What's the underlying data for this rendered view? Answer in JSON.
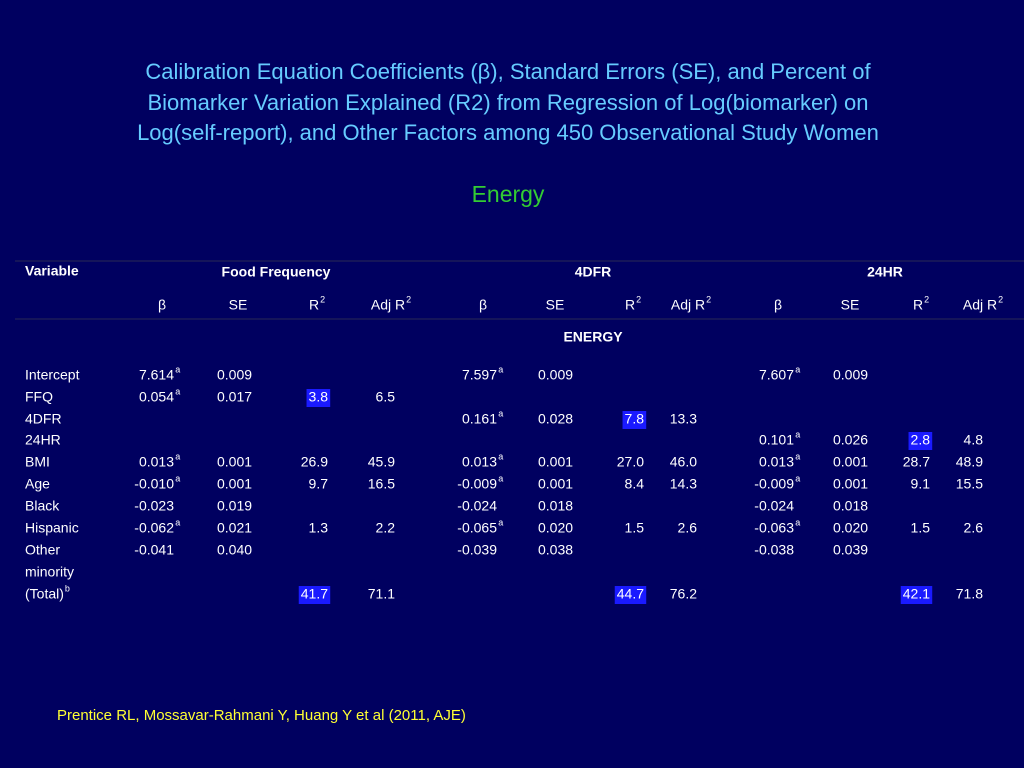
{
  "slide": {
    "title_lines": [
      "Calibration Equation Coefficients (β), Standard Errors (SE), and Percent of",
      "Biomarker Variation Explained (R2) from Regression of Log(biomarker) on",
      "Log(self-report), and Other Factors among 450 Observational Study Women"
    ],
    "subtitle": "Energy",
    "citation": "Prentice RL, Mossavar-Rahmani Y, Huang Y et al (2011, AJE)"
  },
  "table": {
    "variable_header": "Variable",
    "groups": [
      "Food Frequency",
      "4DFR",
      "24HR"
    ],
    "columns": [
      "β",
      "SE",
      {
        "text": "R",
        "sup": "2"
      },
      {
        "text": "Adj R",
        "sup": "2"
      },
      "β",
      "SE",
      {
        "text": "R",
        "sup": "2"
      },
      {
        "text": "Adj R",
        "sup": "2"
      },
      "β",
      "SE",
      {
        "text": "R",
        "sup": "2"
      },
      {
        "text": "Adj R",
        "sup": "2"
      }
    ],
    "section": "ENERGY",
    "rows": [
      {
        "label": "Intercept",
        "cells": [
          {
            "text": "7.614",
            "sup": "a"
          },
          "0.009",
          null,
          null,
          {
            "text": "7.597",
            "sup": "a"
          },
          "0.009",
          null,
          null,
          {
            "text": "7.607",
            "sup": "a"
          },
          "0.009",
          null,
          null
        ]
      },
      {
        "label": "FFQ",
        "cells": [
          {
            "text": "0.054",
            "sup": "a"
          },
          "0.017",
          {
            "text": "3.8",
            "highlight": true
          },
          "6.5",
          null,
          null,
          null,
          null,
          null,
          null,
          null,
          null
        ]
      },
      {
        "label": "4DFR",
        "cells": [
          null,
          null,
          null,
          null,
          {
            "text": "0.161",
            "sup": "a"
          },
          "0.028",
          {
            "text": "7.8",
            "highlight": true
          },
          "13.3",
          null,
          null,
          null,
          null
        ]
      },
      {
        "label": "24HR",
        "cells": [
          null,
          null,
          null,
          null,
          null,
          null,
          null,
          null,
          {
            "text": "0.101",
            "sup": "a"
          },
          "0.026",
          {
            "text": "2.8",
            "highlight": true
          },
          "4.8"
        ]
      },
      {
        "label": "BMI",
        "cells": [
          {
            "text": "0.013",
            "sup": "a"
          },
          "0.001",
          "26.9",
          "45.9",
          {
            "text": "0.013",
            "sup": "a"
          },
          "0.001",
          "27.0",
          "46.0",
          {
            "text": "0.013",
            "sup": "a"
          },
          "0.001",
          "28.7",
          "48.9"
        ]
      },
      {
        "label": "Age",
        "cells": [
          {
            "text": "-0.010",
            "sup": "a"
          },
          "0.001",
          "9.7",
          "16.5",
          {
            "text": "-0.009",
            "sup": "a"
          },
          "0.001",
          "8.4",
          "14.3",
          {
            "text": "-0.009",
            "sup": "a"
          },
          "0.001",
          "9.1",
          "15.5"
        ]
      },
      {
        "label": "Black",
        "cells": [
          "-0.023",
          "0.019",
          null,
          null,
          "-0.024",
          "0.018",
          null,
          null,
          "-0.024",
          "0.018",
          null,
          null
        ]
      },
      {
        "label": "Hispanic",
        "cells": [
          {
            "text": "-0.062",
            "sup": "a"
          },
          "0.021",
          "1.3",
          "2.2",
          {
            "text": "-0.065",
            "sup": "a"
          },
          "0.020",
          "1.5",
          "2.6",
          {
            "text": "-0.063",
            "sup": "a"
          },
          "0.020",
          "1.5",
          "2.6"
        ]
      },
      {
        "label": "Other",
        "cells": [
          "-0.041",
          "0.040",
          null,
          null,
          "-0.039",
          "0.038",
          null,
          null,
          "-0.038",
          "0.039",
          null,
          null
        ]
      },
      {
        "label": "minority",
        "cells": [
          null,
          null,
          null,
          null,
          null,
          null,
          null,
          null,
          null,
          null,
          null,
          null
        ]
      },
      {
        "label": {
          "text": "(Total)",
          "sup": "b"
        },
        "cells": [
          null,
          null,
          {
            "text": "41.7",
            "highlight": true
          },
          "71.1",
          null,
          null,
          {
            "text": "44.7",
            "highlight": true
          },
          "76.2",
          null,
          null,
          {
            "text": "42.1",
            "highlight": true
          },
          "71.8"
        ]
      }
    ]
  }
}
